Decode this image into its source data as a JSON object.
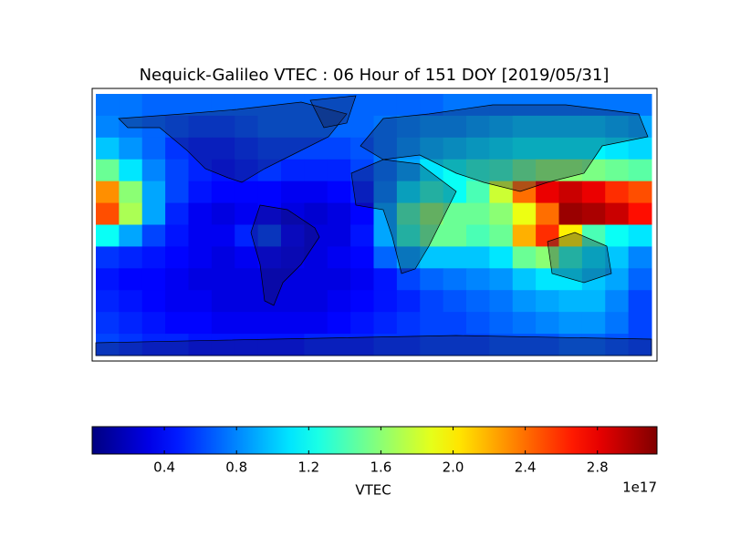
{
  "chart_data": {
    "type": "heatmap",
    "title": "Nequick-Galileo VTEC : 06 Hour of 151 DOY [2019/05/31]",
    "colormap": "jet",
    "xlim": [
      -180,
      180
    ],
    "ylim": [
      90,
      -90
    ],
    "z": [
      [
        0.75,
        0.75,
        0.7,
        0.7,
        0.7,
        0.7,
        0.7,
        0.7,
        0.7,
        0.7,
        0.7,
        0.7,
        0.7,
        0.7,
        0.7,
        0.75,
        0.75,
        0.75,
        0.75,
        0.75,
        0.75,
        0.75,
        0.75,
        0.75
      ],
      [
        0.8,
        0.75,
        0.7,
        0.65,
        0.6,
        0.6,
        0.65,
        0.7,
        0.7,
        0.7,
        0.7,
        0.7,
        0.75,
        0.8,
        0.85,
        0.85,
        0.9,
        0.95,
        1.0,
        1.0,
        1.0,
        1.0,
        0.95,
        0.9
      ],
      [
        1.0,
        0.85,
        0.7,
        0.55,
        0.5,
        0.5,
        0.55,
        0.6,
        0.6,
        0.6,
        0.6,
        0.65,
        0.75,
        0.85,
        0.95,
        1.0,
        1.05,
        1.1,
        1.15,
        1.15,
        1.15,
        1.15,
        1.1,
        1.05
      ],
      [
        1.5,
        1.1,
        0.8,
        0.6,
        0.5,
        0.45,
        0.5,
        0.55,
        0.5,
        0.5,
        0.5,
        0.6,
        0.75,
        0.9,
        1.1,
        1.2,
        1.3,
        1.35,
        1.5,
        1.6,
        1.6,
        1.55,
        1.5,
        1.45
      ],
      [
        2.3,
        1.6,
        0.9,
        0.6,
        0.45,
        0.4,
        0.4,
        0.4,
        0.35,
        0.35,
        0.4,
        0.5,
        0.8,
        1.1,
        1.3,
        1.2,
        1.4,
        1.8,
        2.4,
        2.8,
        2.9,
        2.8,
        2.6,
        2.5
      ],
      [
        2.5,
        1.7,
        0.9,
        0.5,
        0.35,
        0.3,
        0.35,
        0.4,
        0.3,
        0.25,
        0.3,
        0.4,
        0.9,
        1.4,
        1.6,
        1.5,
        1.5,
        1.6,
        1.9,
        2.4,
        3.05,
        3.0,
        2.9,
        2.7
      ],
      [
        1.2,
        0.9,
        0.6,
        0.45,
        0.35,
        0.35,
        0.5,
        0.6,
        0.4,
        0.3,
        0.3,
        0.45,
        0.9,
        1.3,
        1.5,
        1.5,
        1.4,
        1.5,
        2.2,
        2.6,
        2.0,
        1.4,
        1.2,
        1.1
      ],
      [
        0.55,
        0.5,
        0.45,
        0.4,
        0.35,
        0.3,
        0.35,
        0.4,
        0.35,
        0.3,
        0.35,
        0.4,
        0.7,
        0.9,
        1.0,
        1.0,
        1.0,
        1.1,
        1.5,
        1.6,
        1.3,
        1.1,
        1.0,
        0.8
      ],
      [
        0.45,
        0.4,
        0.4,
        0.35,
        0.3,
        0.3,
        0.3,
        0.3,
        0.3,
        0.3,
        0.3,
        0.35,
        0.45,
        0.6,
        0.7,
        0.75,
        0.8,
        0.85,
        1.0,
        1.1,
        1.1,
        1.0,
        0.9,
        0.7
      ],
      [
        0.5,
        0.45,
        0.4,
        0.35,
        0.35,
        0.3,
        0.3,
        0.3,
        0.3,
        0.3,
        0.35,
        0.4,
        0.45,
        0.5,
        0.6,
        0.65,
        0.7,
        0.75,
        0.85,
        0.9,
        0.95,
        0.95,
        0.8,
        0.6
      ],
      [
        0.55,
        0.5,
        0.45,
        0.4,
        0.4,
        0.35,
        0.35,
        0.35,
        0.35,
        0.35,
        0.4,
        0.45,
        0.5,
        0.55,
        0.6,
        0.6,
        0.65,
        0.7,
        0.75,
        0.8,
        0.85,
        0.85,
        0.75,
        0.6
      ],
      [
        0.6,
        0.55,
        0.5,
        0.5,
        0.45,
        0.45,
        0.45,
        0.45,
        0.45,
        0.5,
        0.5,
        0.5,
        0.55,
        0.55,
        0.6,
        0.6,
        0.6,
        0.65,
        0.65,
        0.65,
        0.7,
        0.7,
        0.65,
        0.6
      ]
    ],
    "colorbar": {
      "label": "VTEC",
      "offset_text": "1e17",
      "clim": [
        0.0,
        3.13
      ],
      "ticks": [
        0.4,
        0.8,
        1.2,
        1.6,
        {
          "value": 2,
          "label": "2.0"
        },
        2.4,
        2.8
      ]
    }
  }
}
